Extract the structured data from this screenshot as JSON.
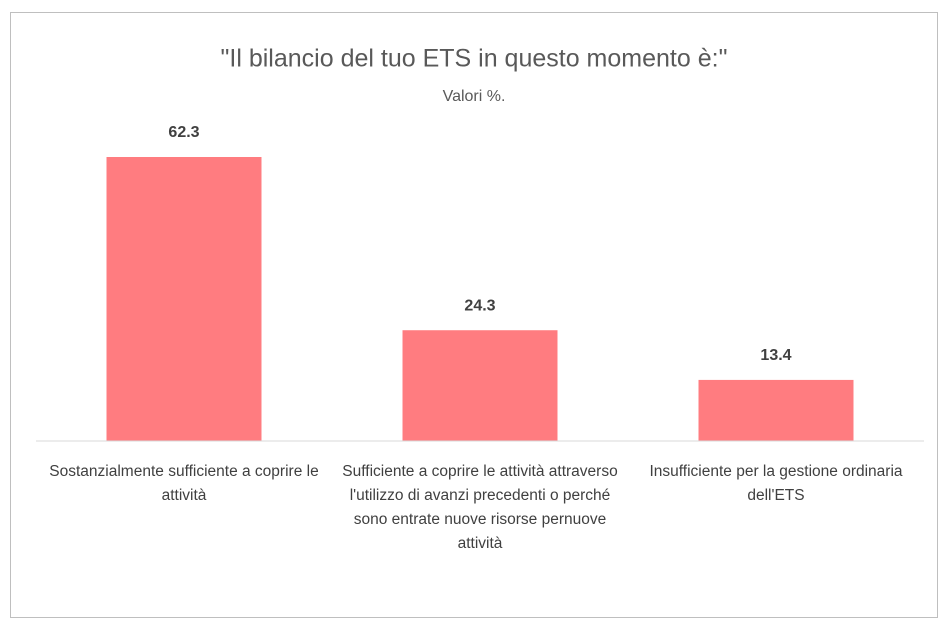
{
  "chart_data": {
    "type": "bar",
    "title": "\"Il bilancio del tuo ETS in questo momento è:\"",
    "subtitle": "Valori %.",
    "categories": [
      "Sostanzialmente sufficiente a coprire le attività",
      "Sufficiente a coprire le attività attraverso l'utilizzo di avanzi precedenti o perché sono entrate nuove risorse pernuove attività",
      "Insufficiente per la gestione ordinaria dell'ETS"
    ],
    "values": [
      62.3,
      24.3,
      13.4
    ],
    "color": "#ff7c80"
  }
}
